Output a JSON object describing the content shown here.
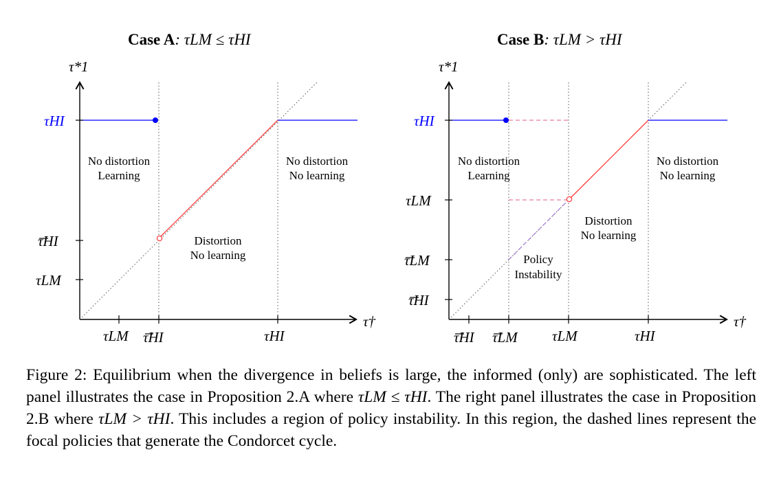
{
  "panels": [
    {
      "title_bold": "Case A",
      "title_math": ": τLM ≤ τHI",
      "yaxis_label": "τ*1",
      "xaxis_label": "τ†",
      "ytick_labels": [
        "τHI",
        "τHI",
        "τLM"
      ],
      "xtick_labels": [
        "τLM",
        "τHI",
        "τHI"
      ],
      "regions": [
        {
          "line1": "No distortion",
          "line2": "Learning"
        },
        {
          "line1": "No distortion",
          "line2": "No learning"
        },
        {
          "line1": "Distortion",
          "line2": "No learning"
        }
      ]
    },
    {
      "title_bold": "Case B",
      "title_math": ": τLM > τHI",
      "yaxis_label": "τ*1",
      "xaxis_label": "τ†",
      "ytick_labels": [
        "τHI",
        "τLM",
        "τLM",
        "τHI"
      ],
      "xtick_labels": [
        "τHI",
        "τLM",
        "τLM",
        "τHI"
      ],
      "regions": [
        {
          "line1": "No distortion",
          "line2": "Learning"
        },
        {
          "line1": "No distortion",
          "line2": "No learning"
        },
        {
          "line1": "Distortion",
          "line2": "No learning"
        },
        {
          "line1": "Policy",
          "line2": "Instability"
        }
      ]
    }
  ],
  "colors": {
    "blue": "#0000ff",
    "red": "#ff3b3b",
    "dash": "#e05a8a",
    "dotted": "#555555"
  },
  "caption": {
    "p1": "Figure 2: Equilibrium when the divergence in beliefs is large, the informed (only) are sophisticated. The left panel illustrates the case in Proposition 2.A where ",
    "m1": "τLM ≤ τHI",
    "p2": ". The right panel illustrates the case in Proposition 2.B where ",
    "m2": "τLM > τHI",
    "p3": ". This includes a region of policy instability. In this region, the dashed lines represent the focal policies that generate the Condorcet cycle."
  }
}
